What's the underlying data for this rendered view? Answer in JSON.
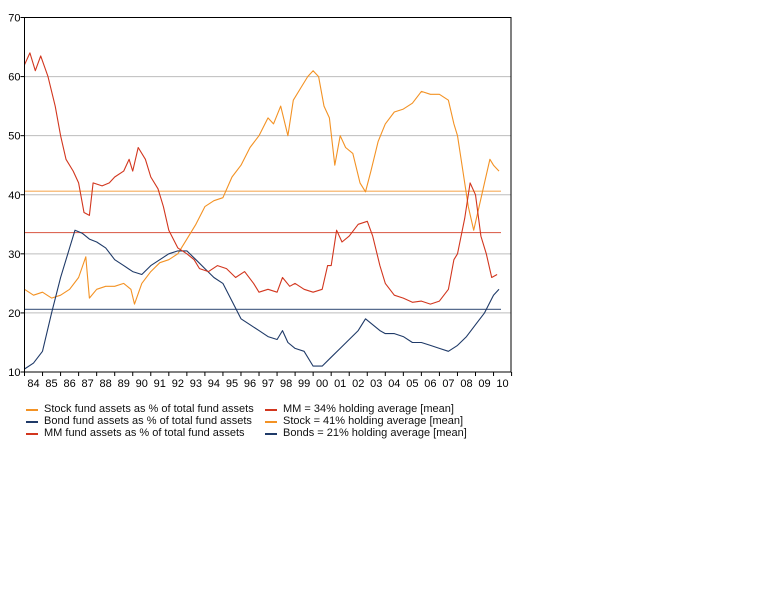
{
  "chart_data": {
    "type": "line",
    "title": "",
    "xlabel": "",
    "ylabel": "",
    "ylim": [
      10,
      70
    ],
    "yticks": [
      "10",
      "20",
      "30",
      "40",
      "50",
      "60",
      "70"
    ],
    "xlim": [
      1984,
      2010.5
    ],
    "xtick_labels": [
      "84",
      "85",
      "86",
      "87",
      "88",
      "89",
      "90",
      "91",
      "92",
      "93",
      "94",
      "95",
      "96",
      "97",
      "98",
      "99",
      "00",
      "01",
      "02",
      "03",
      "04",
      "05",
      "06",
      "07",
      "08",
      "09",
      "10"
    ],
    "grid": "horizontal",
    "legend_placement": "bottom",
    "series": [
      {
        "name": "Stock fund assets as % of total fund assets",
        "color": "#f39224",
        "x": [
          1984.0,
          1984.5,
          1985,
          1985.5,
          1986,
          1986.5,
          1987.0,
          1987.4,
          1987.6,
          1988,
          1988.5,
          1989,
          1989.5,
          1989.9,
          1990.1,
          1990.5,
          1991.0,
          1991.5,
          1992,
          1992.5,
          1993,
          1993.5,
          1994,
          1994.5,
          1995.0,
          1995.5,
          1996,
          1996.5,
          1997,
          1997.5,
          1997.8,
          1998.2,
          1998.6,
          1998.9,
          1999.3,
          1999.7,
          2000.0,
          2000.3,
          2000.6,
          2000.9,
          2001.2,
          2001.5,
          2001.8,
          2002.2,
          2002.6,
          2002.9,
          2003.2,
          2003.6,
          2004,
          2004.5,
          2005,
          2005.5,
          2006,
          2006.5,
          2007,
          2007.5,
          2007.8,
          2008.0,
          2008.3,
          2008.6,
          2008.9,
          2009.2,
          2009.5,
          2009.8,
          2010.0,
          2010.3
        ],
        "y": [
          24,
          23,
          23.5,
          22.5,
          23,
          24,
          26,
          29.5,
          22.5,
          24,
          24.5,
          24.5,
          25,
          24,
          21.5,
          25,
          27,
          28.5,
          29,
          30,
          32.5,
          35,
          38,
          39,
          39.5,
          43,
          45,
          48,
          50,
          53,
          52,
          55,
          50,
          56,
          58,
          60,
          61,
          60,
          55,
          53,
          45,
          50,
          48,
          47,
          42,
          40.5,
          44,
          49,
          52,
          54,
          54.5,
          55.5,
          57.5,
          57,
          57,
          56,
          52,
          50,
          44,
          38,
          34,
          38,
          42,
          46,
          45,
          44
        ]
      },
      {
        "name": "Bond fund assets as % of total fund assets",
        "color": "#1f3a68",
        "x": [
          1984.0,
          1984.5,
          1985,
          1985.5,
          1986,
          1986.5,
          1986.8,
          1987.2,
          1987.6,
          1988,
          1988.5,
          1989,
          1989.5,
          1990,
          1990.5,
          1991,
          1991.5,
          1992,
          1992.5,
          1993,
          1993.5,
          1994,
          1994.5,
          1995,
          1995.5,
          1996,
          1996.5,
          1997,
          1997.5,
          1998,
          1998.3,
          1998.6,
          1999,
          1999.5,
          2000,
          2000.5,
          2001,
          2001.5,
          2002,
          2002.5,
          2002.9,
          2003.3,
          2003.7,
          2004,
          2004.5,
          2005,
          2005.5,
          2006,
          2006.5,
          2007,
          2007.5,
          2008,
          2008.5,
          2009,
          2009.5,
          2010,
          2010.3
        ],
        "y": [
          10.5,
          11.5,
          13.5,
          20,
          26,
          31,
          34,
          33.5,
          32.5,
          32,
          31,
          29,
          28,
          27,
          26.5,
          28,
          29,
          30,
          30.5,
          30.5,
          29,
          27.5,
          26,
          25,
          22,
          19,
          18,
          17,
          16,
          15.5,
          17,
          15,
          14,
          13.5,
          11,
          11,
          12.5,
          14,
          15.5,
          17,
          19,
          18,
          17,
          16.5,
          16.5,
          16,
          15,
          15,
          14.5,
          14,
          13.5,
          14.5,
          16,
          18,
          20,
          23,
          24
        ]
      },
      {
        "name": "MM fund assets as % of total fund assets",
        "color": "#d2361e",
        "x": [
          1984.0,
          1984.3,
          1984.6,
          1984.9,
          1985.3,
          1985.7,
          1986.0,
          1986.3,
          1986.7,
          1987.0,
          1987.3,
          1987.6,
          1987.8,
          1988.3,
          1988.7,
          1989.0,
          1989.5,
          1989.8,
          1990.0,
          1990.3,
          1990.7,
          1991.0,
          1991.4,
          1991.7,
          1992.0,
          1992.5,
          1993.0,
          1993.4,
          1993.7,
          1994.2,
          1994.7,
          1995.2,
          1995.7,
          1996.2,
          1996.7,
          1997.0,
          1997.5,
          1998.0,
          1998.3,
          1998.7,
          1999.0,
          1999.5,
          2000.0,
          2000.5,
          2000.8,
          2001.0,
          2001.3,
          2001.6,
          2002.0,
          2002.5,
          2003.0,
          2003.3,
          2003.7,
          2004.0,
          2004.5,
          2005.0,
          2005.5,
          2006.0,
          2006.5,
          2007.0,
          2007.5,
          2007.8,
          2008.0,
          2008.4,
          2008.7,
          2009.0,
          2009.3,
          2009.6,
          2009.9,
          2010.2
        ],
        "y": [
          62,
          64,
          61,
          63.5,
          60,
          55,
          50,
          46,
          44,
          42,
          37,
          36.5,
          42,
          41.5,
          42,
          43,
          44,
          46,
          44,
          48,
          46,
          43,
          41,
          38,
          34,
          31,
          30,
          29,
          27.5,
          27,
          28,
          27.5,
          26,
          27,
          25,
          23.5,
          24,
          23.5,
          26,
          24.5,
          25,
          24,
          23.5,
          24,
          28,
          28,
          34,
          32,
          33,
          35,
          35.5,
          33,
          28,
          25,
          23,
          22.5,
          21.8,
          22,
          21.5,
          22,
          24,
          29,
          30,
          36,
          42,
          40,
          33,
          30,
          26,
          26.5
        ]
      },
      {
        "name": "MM = 34% holding average [mean]",
        "color": "#d2361e",
        "constant": 33.6
      },
      {
        "name": "Stock = 41% holding average [mean]",
        "color": "#f39224",
        "constant": 40.6
      },
      {
        "name": "Bonds = 21% holding average [mean]",
        "color": "#1f3a68",
        "constant": 20.6
      }
    ]
  }
}
